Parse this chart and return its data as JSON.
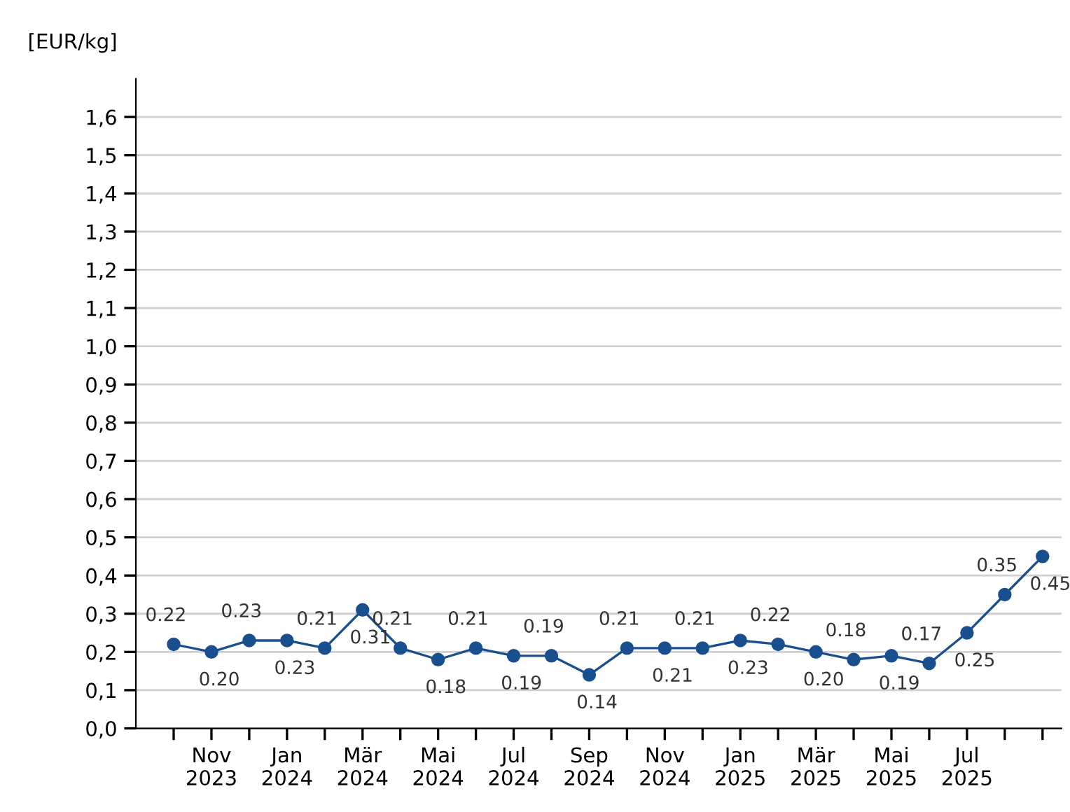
{
  "chart_data": {
    "type": "line",
    "ylabel": "[EUR/kg]",
    "categories": [
      null,
      "Nov\n2023",
      null,
      "Jan\n2024",
      null,
      "Mär\n2024",
      null,
      "Mai\n2024",
      null,
      "Jul\n2024",
      null,
      "Sep\n2024",
      null,
      "Nov\n2024",
      null,
      "Jan\n2025",
      null,
      "Mär\n2025",
      null,
      "Mai\n2025",
      null,
      "Jul\n2025",
      null,
      null
    ],
    "series": [
      {
        "color": "#1a4f8f",
        "values": [
          0.22,
          0.2,
          0.23,
          0.23,
          0.21,
          0.31,
          0.21,
          0.18,
          0.21,
          0.19,
          0.19,
          0.14,
          0.21,
          0.21,
          0.21,
          0.23,
          0.22,
          0.2,
          0.18,
          0.19,
          0.17,
          0.25,
          0.35,
          0.45
        ],
        "value_labels": [
          "0.22",
          "0.20",
          "0.23",
          "0.23",
          "0.21",
          "0.31",
          "0.21",
          "0.18",
          "0.21",
          "0.19",
          "0.19",
          "0.14",
          "0.21",
          "0.21",
          "0.21",
          "0.23",
          "0.22",
          "0.20",
          "0.18",
          "0.19",
          "0.17",
          "0.25",
          "0.35",
          "0.45"
        ]
      }
    ],
    "ylim": [
      0,
      1.7
    ],
    "yticks": [
      {
        "value": 0,
        "label": "0,0"
      },
      {
        "value": 0.1,
        "label": "0,1"
      },
      {
        "value": 0.2,
        "label": "0,2"
      },
      {
        "value": 0.3,
        "label": "0,3"
      },
      {
        "value": 0.4,
        "label": "0,4"
      },
      {
        "value": 0.5,
        "label": "0,5"
      },
      {
        "value": 0.6,
        "label": "0,6"
      },
      {
        "value": 0.7,
        "label": "0,7"
      },
      {
        "value": 0.8,
        "label": "0,8"
      },
      {
        "value": 0.9,
        "label": "0,9"
      },
      {
        "value": 1.0,
        "label": "1,0"
      },
      {
        "value": 1.1,
        "label": "1,1"
      },
      {
        "value": 1.2,
        "label": "1,2"
      },
      {
        "value": 1.3,
        "label": "1,3"
      },
      {
        "value": 1.4,
        "label": "1,4"
      },
      {
        "value": 1.5,
        "label": "1,5"
      },
      {
        "value": 1.6,
        "label": "1,6"
      }
    ],
    "grid": "y",
    "marker": "circle",
    "line_style": "solid"
  }
}
